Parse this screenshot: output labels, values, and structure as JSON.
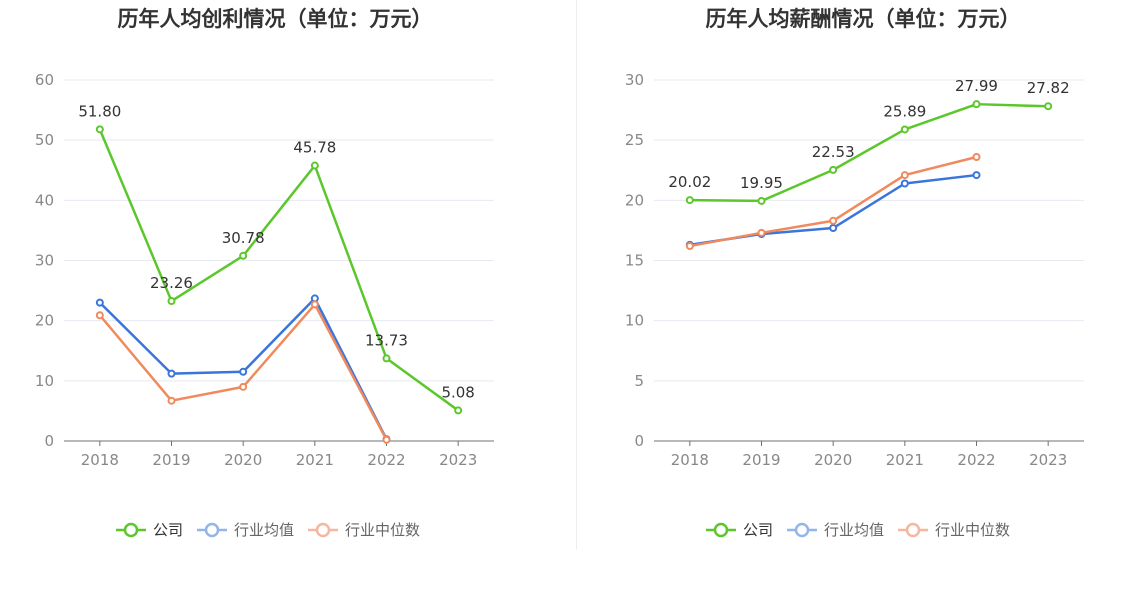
{
  "chart_data": [
    {
      "type": "line",
      "title": "历年人均创利情况（单位：万元）",
      "categories": [
        "2018",
        "2019",
        "2020",
        "2021",
        "2022",
        "2023"
      ],
      "ylim": [
        0,
        60
      ],
      "yticks": [
        "0",
        "10",
        "20",
        "30",
        "40",
        "50",
        "60"
      ],
      "grid": true,
      "legend_position": "bottom",
      "series": [
        {
          "name": "公司",
          "color": "#5cc72b",
          "values": [
            51.8,
            23.26,
            30.78,
            45.78,
            13.73,
            5.08
          ],
          "labels": [
            "51.80",
            "23.26",
            "30.78",
            "45.78",
            "13.73",
            "5.08"
          ]
        },
        {
          "name": "行业均值",
          "color": "#3a75dc",
          "values": [
            23.0,
            11.2,
            11.5,
            23.7,
            0.3,
            null
          ]
        },
        {
          "name": "行业中位数",
          "color": "#f08a5d",
          "values": [
            20.9,
            6.7,
            9.0,
            22.7,
            0.2,
            null
          ]
        }
      ]
    },
    {
      "type": "line",
      "title": "历年人均薪酬情况（单位：万元）",
      "categories": [
        "2018",
        "2019",
        "2020",
        "2021",
        "2022",
        "2023"
      ],
      "ylim": [
        0,
        30
      ],
      "yticks": [
        "0",
        "5",
        "10",
        "15",
        "20",
        "25",
        "30"
      ],
      "grid": true,
      "legend_position": "bottom",
      "series": [
        {
          "name": "公司",
          "color": "#5cc72b",
          "values": [
            20.02,
            19.95,
            22.53,
            25.89,
            27.99,
            27.82
          ],
          "labels": [
            "20.02",
            "19.95",
            "22.53",
            "25.89",
            "27.99",
            "27.82"
          ]
        },
        {
          "name": "行业均值",
          "color": "#3a75dc",
          "values": [
            16.3,
            17.2,
            17.7,
            21.4,
            22.1,
            null
          ]
        },
        {
          "name": "行业中位数",
          "color": "#f08a5d",
          "values": [
            16.2,
            17.3,
            18.3,
            22.1,
            23.6,
            null
          ]
        }
      ]
    }
  ],
  "legend_inactive_colors": {
    "行业均值": "#93b5ec",
    "行业中位数": "#f5b7a0"
  }
}
